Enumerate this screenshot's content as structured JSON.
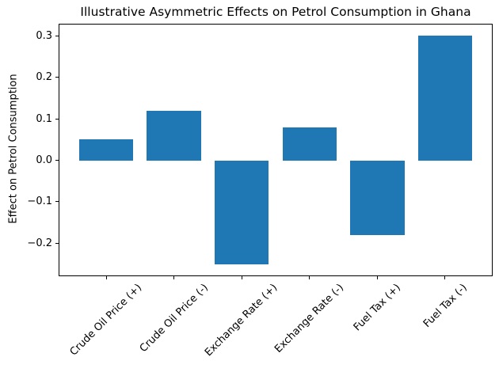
{
  "figure": {
    "title": "Illustrative Asymmetric Effects on Petrol Consumption in Ghana"
  },
  "chart_data": {
    "type": "bar",
    "title": "Illustrative Asymmetric Effects on Petrol Consumption in Ghana",
    "categories": [
      "Crude Oil Price (+)",
      "Crude Oil Price (-)",
      "Exchange Rate (+)",
      "Exchange Rate (-)",
      "Fuel Tax (+)",
      "Fuel Tax (-)"
    ],
    "values": [
      0.05,
      0.12,
      -0.25,
      0.08,
      -0.18,
      0.3
    ],
    "xlabel": "",
    "ylabel": "Effect on Petrol Consumption",
    "ylim": [
      -0.2775,
      0.3275
    ],
    "xlim": [
      -0.69,
      5.69
    ],
    "yticks": [
      0.3,
      0.2,
      0.1,
      0.0,
      -0.1,
      -0.2
    ],
    "ytick_labels": [
      "0.3",
      "0.2",
      "0.1",
      "0.0",
      "−0.1",
      "−0.2"
    ],
    "bar_color": "#1f77b4",
    "bar_width": 0.8,
    "x_tick_rotation_deg": 45,
    "grid": false,
    "legend": null,
    "spine_color": "#000000",
    "background_color": "#ffffff"
  }
}
